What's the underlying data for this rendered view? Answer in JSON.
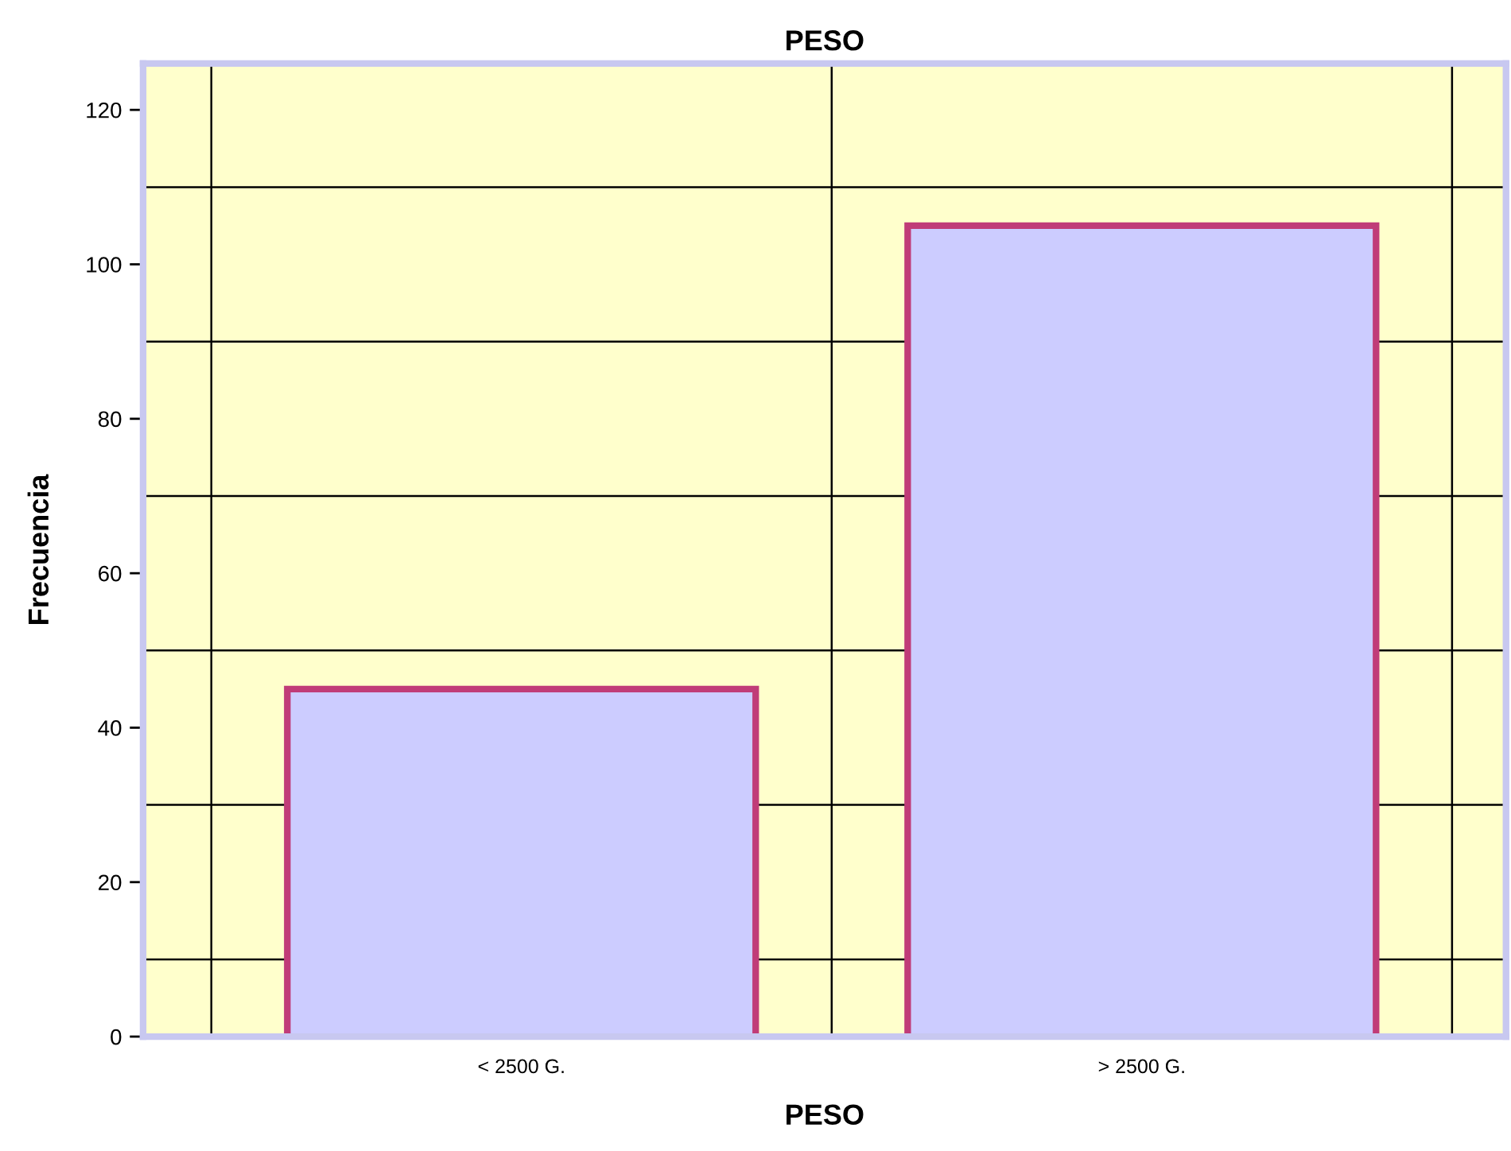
{
  "chart_data": {
    "type": "bar",
    "title": "PESO",
    "xlabel": "PESO",
    "ylabel": "Frecuencia",
    "categories": [
      "< 2500 G.",
      "> 2500 G."
    ],
    "series": [
      {
        "color": "#ccccff",
        "values": [
          45,
          105
        ]
      }
    ],
    "ylim": [
      0,
      126
    ],
    "yticks": [
      0,
      20,
      40,
      60,
      80,
      100,
      120
    ],
    "grid": true,
    "legend": false
  }
}
